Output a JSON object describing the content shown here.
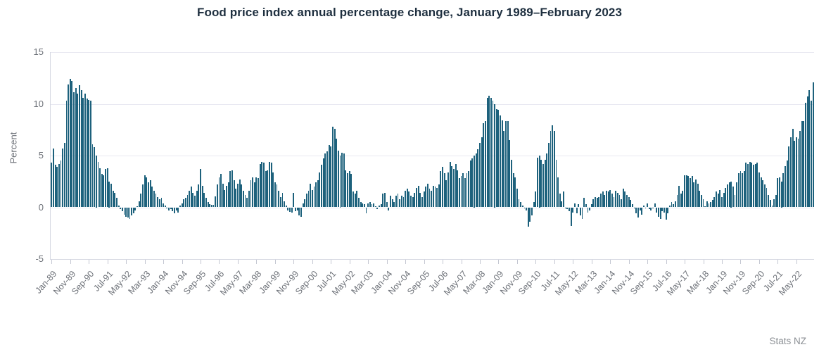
{
  "page": {
    "source": "Stats NZ"
  },
  "colors": {
    "bar": "#1d617c",
    "grid": "#e8e8f1",
    "axis_line": "#d6d8e2",
    "tick": "#c4c7d2",
    "label": "#6d7178",
    "title": "#1e2f3f",
    "source": "#8b8f94"
  },
  "chart_data": {
    "type": "bar",
    "title": "Food price index annual percentage change, January 1989–February 2023",
    "xlabel": "",
    "ylabel": "Percent",
    "start_month": "1989-01",
    "end_month": "2023-02",
    "frequency": "monthly",
    "ylim": [
      -5,
      15
    ],
    "yticks": [
      15,
      10,
      5,
      0,
      -5
    ],
    "grid": "horizontal",
    "legend": "none",
    "x_tick_every": 10,
    "x_tick_labels": [
      "Jan-89",
      "Nov-89",
      "Sep-90",
      "Jul-91",
      "May-92",
      "Mar-93",
      "Jan-94",
      "Nov-94",
      "Sep-95",
      "Jul-96",
      "May-97",
      "Mar-98",
      "Jan-99",
      "Nov-99",
      "Sep-00",
      "Jul-01",
      "May-02",
      "Mar-03",
      "Jan-04",
      "Nov-04",
      "Sep-05",
      "Jul-06",
      "May-07",
      "Mar-08",
      "Jan-09",
      "Nov-09",
      "Sep-10",
      "Jul-11",
      "May-12",
      "Mar-13",
      "Jan-14",
      "Nov-14",
      "Sep-15",
      "Jul-16",
      "May-17",
      "Mar-18",
      "Jan-19",
      "Nov-19",
      "Sep-20",
      "Jul-21",
      "May-22"
    ],
    "values": [
      4.3,
      5.7,
      4.1,
      3.9,
      4.2,
      4.5,
      5.7,
      6.2,
      10.3,
      11.9,
      12.4,
      12.2,
      11.1,
      11.5,
      11.0,
      11.8,
      11.3,
      10.6,
      11.0,
      10.5,
      10.4,
      10.3,
      6.1,
      5.8,
      5.0,
      4.4,
      3.8,
      3.2,
      3.1,
      3.7,
      3.8,
      2.5,
      2.3,
      1.6,
      1.4,
      0.9,
      0.2,
      -0.2,
      -0.4,
      -0.7,
      -0.9,
      -1.0,
      -1.1,
      -0.8,
      -0.6,
      -0.3,
      0.1,
      0.6,
      1.3,
      2.2,
      3.1,
      2.9,
      2.4,
      2.6,
      2.0,
      1.6,
      1.3,
      1.0,
      0.8,
      0.9,
      0.4,
      0.2,
      -0.1,
      -0.3,
      -0.2,
      -0.4,
      -0.6,
      -0.3,
      -0.5,
      0.2,
      0.4,
      0.8,
      0.9,
      1.2,
      1.6,
      2.0,
      1.4,
      1.1,
      1.6,
      2.2,
      3.7,
      2.1,
      1.4,
      0.9,
      0.5,
      0.3,
      0.25,
      0.25,
      1.05,
      2.2,
      2.9,
      3.2,
      2.3,
      1.7,
      2.1,
      2.4,
      3.5,
      3.6,
      2.6,
      1.8,
      2.3,
      2.7,
      2.2,
      1.6,
      1.2,
      0.9,
      1.6,
      2.6,
      2.9,
      2.4,
      2.9,
      2.8,
      4.2,
      4.4,
      4.3,
      3.5,
      3.6,
      4.4,
      4.3,
      3.4,
      2.4,
      2.2,
      1.6,
      1.0,
      1.4,
      0.6,
      0.2,
      -0.3,
      -0.45,
      -0.5,
      1.4,
      -0.4,
      -0.3,
      -0.8,
      -0.9,
      0.4,
      0.8,
      1.3,
      1.6,
      2.3,
      1.7,
      2.0,
      2.4,
      2.6,
      3.4,
      4.1,
      4.7,
      5.2,
      5.4,
      6.0,
      5.9,
      7.8,
      7.6,
      6.6,
      5.5,
      5.0,
      5.3,
      5.2,
      3.6,
      3.3,
      3.5,
      3.2,
      1.5,
      1.3,
      1.6,
      0.9,
      0.5,
      0.4,
      0.3,
      -0.55,
      0.4,
      0.5,
      0.3,
      0.35,
      0.1,
      -0.15,
      0.15,
      0.3,
      1.3,
      1.4,
      0.5,
      -0.3,
      1.1,
      0.8,
      0.5,
      1.1,
      1.3,
      0.8,
      1.1,
      1.0,
      1.6,
      1.8,
      1.5,
      1.1,
      1.0,
      1.4,
      1.9,
      2.1,
      1.4,
      1.0,
      1.5,
      2.0,
      2.3,
      1.8,
      1.6,
      2.1,
      2.0,
      1.9,
      2.2,
      3.5,
      3.9,
      3.3,
      2.6,
      3.4,
      4.4,
      4.0,
      3.7,
      4.2,
      3.6,
      2.8,
      3.0,
      3.3,
      2.8,
      3.3,
      3.5,
      4.5,
      4.7,
      5.0,
      5.2,
      5.6,
      6.2,
      6.8,
      8.1,
      8.3,
      10.6,
      10.8,
      10.6,
      10.3,
      10.0,
      9.5,
      9.4,
      8.9,
      8.4,
      7.4,
      8.3,
      8.3,
      6.5,
      4.6,
      3.3,
      2.9,
      1.8,
      0.8,
      0.5,
      0.2,
      -0.1,
      -0.3,
      -1.9,
      -1.4,
      -0.8,
      0.5,
      1.5,
      4.8,
      5.0,
      4.6,
      4.2,
      4.6,
      5.2,
      6.2,
      7.4,
      7.9,
      7.4,
      4.6,
      2.9,
      1.3,
      0.6,
      1.5,
      -0.1,
      -0.2,
      -0.4,
      -1.8,
      -0.5,
      0.4,
      -0.6,
      0.3,
      -0.8,
      -1.1,
      0.9,
      0.3,
      -0.5,
      -0.3,
      0.3,
      0.8,
      1.0,
      0.9,
      1.0,
      1.3,
      1.5,
      1.2,
      1.6,
      1.5,
      1.7,
      1.3,
      1.0,
      1.6,
      1.4,
      1.2,
      0.8,
      1.8,
      1.5,
      1.2,
      1.0,
      0.7,
      0.3,
      -0.1,
      -0.6,
      -1.0,
      -0.3,
      -0.7,
      0.2,
      -0.1,
      0.4,
      -0.2,
      -0.3,
      -0.1,
      0.4,
      -0.5,
      -0.9,
      -1.1,
      -0.4,
      -0.5,
      -1.2,
      -0.6,
      0.2,
      0.5,
      0.3,
      0.6,
      1.2,
      2.1,
      1.3,
      1.6,
      3.1,
      3.1,
      3.0,
      2.8,
      3.0,
      2.4,
      2.7,
      2.3,
      1.6,
      1.2,
      0.8,
      0.1,
      0.6,
      0.4,
      0.5,
      0.7,
      1.0,
      1.5,
      1.3,
      1.7,
      1.0,
      1.4,
      1.9,
      2.2,
      2.4,
      2.5,
      2.0,
      1.2,
      2.4,
      3.3,
      3.5,
      3.3,
      3.5,
      4.3,
      4.2,
      4.4,
      4.3,
      4.1,
      4.2,
      4.3,
      3.4,
      2.9,
      2.6,
      2.2,
      1.9,
      1.2,
      0.7,
      0.2,
      0.8,
      1.2,
      2.8,
      2.9,
      2.5,
      3.3,
      4.0,
      4.5,
      5.9,
      6.8,
      7.6,
      6.4,
      6.8,
      6.6,
      7.4,
      8.3,
      8.3,
      10.1,
      10.7,
      11.3,
      10.3,
      12.1
    ]
  }
}
